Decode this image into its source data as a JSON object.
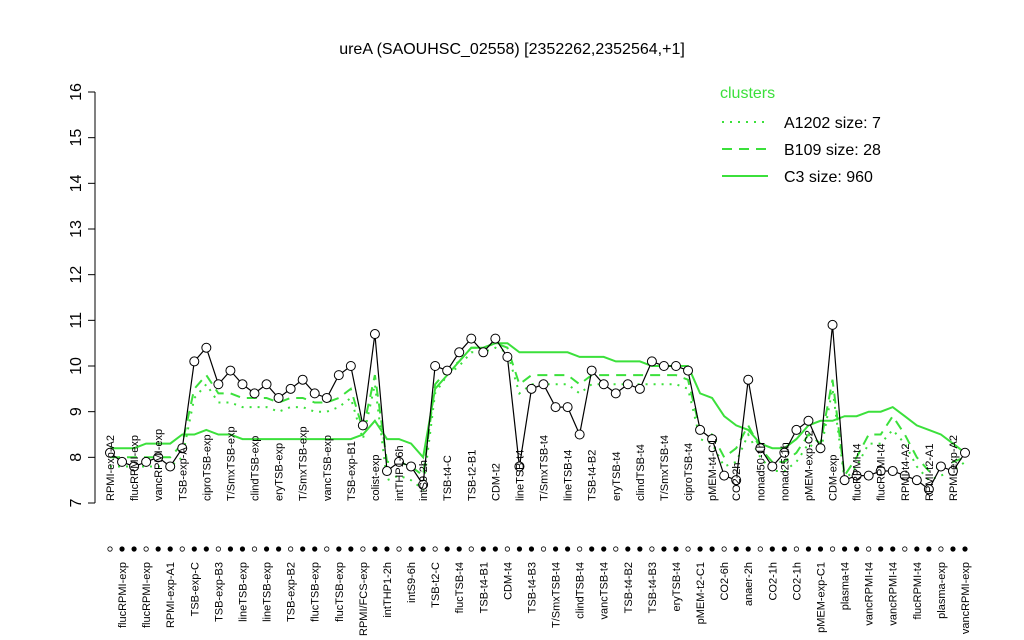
{
  "chart_data": {
    "type": "line",
    "title": "ureA (SAOUHSC_02558) [2352262,2352564,+1]",
    "categories": [
      "RPMI-exp-A2",
      "flucRPMI-exp",
      "flucRPMI-exp",
      "flucRPMI-exp",
      "vancRPMI-exp",
      "RPMI-exp-A1",
      "TSB-exp-A",
      "TSB-exp-C",
      "ciproTSB-exp",
      "TSB-exp-B3",
      "T/SmxTSB-exp",
      "lineTSB-exp",
      "clindTSB-exp",
      "lineTSB-exp",
      "eryTSB-exp",
      "TSB-exp-B2",
      "T/SmxTSB-exp",
      "flucTSB-exp",
      "vancTSB-exp",
      "flucTSB-exp",
      "TSB-exp-B1",
      "RPMI/FCS-exp",
      "colist-exp",
      "intTHP1-2h",
      "intTHP1-6h",
      "intS9-6h",
      "intS9-2h",
      "TSB-t2-C",
      "TSB-t4-C",
      "flucTSB-t4",
      "TSB-t2-B1",
      "TSB-t4-B1",
      "CDM-t2",
      "CDM-t4",
      "lineTSB-t4",
      "TSB-t4-B3",
      "T/SmxTSB-t4",
      "T/SmxTSB-t4",
      "lineTSB-t4",
      "clindTSB-t4",
      "TSB-t4-B2",
      "vancTSB-t4",
      "eryTSB-t4",
      "TSB-t4-B2",
      "clindTSB-t4",
      "TSB-t4-B3",
      "T/SmxTSB-t4",
      "eryTSB-t4",
      "ciproTSB-t4",
      "pMEM-t2-C1",
      "pMEM-t4-C1",
      "CO2-6h",
      "CO2-2h",
      "anaer-2h",
      "nonad50-1h",
      "CO2-1h",
      "nonad25-1h",
      "CO2-1h",
      "pMEM-exp-C2",
      "pMEM-exp-C1",
      "CDM-exp",
      "plasma-t4",
      "flucRPMI-t4",
      "vancRPMI-t4",
      "flucRPMI-t4",
      "vancRPMI-t4",
      "RPMI-t4-A2",
      "flucRPMI-t4",
      "RPMI-t2-A1",
      "plasma-exp",
      "RPMI-exp-A2",
      "vancRPMI-exp"
    ],
    "values": [
      8.1,
      7.9,
      7.8,
      7.9,
      8.0,
      7.8,
      8.2,
      10.1,
      10.4,
      9.6,
      9.9,
      9.6,
      9.4,
      9.6,
      9.3,
      9.5,
      9.7,
      9.4,
      9.3,
      9.8,
      10.0,
      8.7,
      10.7,
      7.7,
      7.9,
      7.8,
      7.4,
      10.0,
      9.9,
      10.3,
      10.6,
      10.3,
      10.6,
      10.2,
      7.8,
      9.5,
      9.6,
      9.1,
      9.1,
      8.5,
      9.9,
      9.6,
      9.4,
      9.6,
      9.5,
      10.1,
      10.0,
      10.0,
      9.9,
      8.6,
      8.4,
      7.6,
      7.5,
      9.7,
      8.2,
      7.8,
      8.1,
      8.6,
      8.8,
      8.2,
      10.9,
      7.5,
      7.6,
      7.6,
      7.7,
      7.7,
      7.6,
      7.5,
      7.3,
      7.8,
      7.7,
      8.1
    ],
    "color": "#000000",
    "series": [
      {
        "name": "A1202 size: 7",
        "color": "#3be03b",
        "dash": "dotted",
        "values": [
          7.8,
          7.8,
          7.8,
          7.8,
          7.8,
          7.8,
          8.0,
          9.3,
          9.6,
          9.2,
          9.2,
          9.1,
          9.1,
          9.1,
          9.0,
          9.1,
          9.1,
          9.0,
          9.0,
          9.1,
          9.3,
          8.4,
          9.6,
          7.5,
          7.6,
          7.5,
          7.3,
          9.4,
          9.8,
          10.0,
          10.3,
          10.3,
          10.4,
          10.3,
          9.4,
          9.6,
          9.6,
          9.6,
          9.6,
          9.4,
          9.6,
          9.6,
          9.6,
          9.6,
          9.6,
          9.6,
          9.6,
          9.6,
          9.5,
          8.4,
          8.3,
          7.8,
          7.9,
          8.5,
          8.0,
          7.7,
          7.7,
          7.9,
          8.3,
          8.1,
          9.5,
          7.5,
          7.8,
          8.3,
          8.3,
          8.6,
          8.3,
          7.8,
          7.5,
          7.6,
          7.7,
          7.9
        ]
      },
      {
        "name": "B109 size: 28",
        "color": "#3be03b",
        "dash": "dashed",
        "values": [
          8.0,
          8.0,
          8.0,
          8.0,
          8.0,
          8.0,
          8.3,
          9.5,
          9.8,
          9.4,
          9.4,
          9.3,
          9.3,
          9.3,
          9.2,
          9.3,
          9.3,
          9.2,
          9.2,
          9.3,
          9.5,
          8.6,
          9.8,
          7.9,
          7.9,
          7.8,
          7.6,
          9.6,
          9.9,
          10.1,
          10.4,
          10.4,
          10.5,
          10.4,
          9.6,
          9.8,
          9.8,
          9.8,
          9.8,
          9.6,
          9.8,
          9.8,
          9.8,
          9.8,
          9.8,
          9.8,
          9.8,
          9.8,
          9.7,
          8.6,
          8.5,
          8.0,
          8.2,
          8.7,
          8.2,
          7.9,
          7.9,
          8.1,
          8.5,
          8.3,
          9.7,
          7.6,
          8.0,
          8.5,
          8.5,
          8.9,
          8.5,
          8.0,
          7.7,
          7.8,
          7.9,
          8.0
        ]
      },
      {
        "name": "C3 size: 960",
        "color": "#3be03b",
        "dash": "solid",
        "values": [
          8.2,
          8.2,
          8.2,
          8.3,
          8.3,
          8.3,
          8.5,
          8.5,
          8.6,
          8.5,
          8.5,
          8.4,
          8.4,
          8.4,
          8.4,
          8.4,
          8.4,
          8.4,
          8.4,
          8.4,
          8.4,
          8.5,
          8.8,
          8.4,
          8.4,
          8.3,
          8.0,
          9.5,
          9.8,
          10.1,
          10.4,
          10.4,
          10.5,
          10.5,
          10.3,
          10.3,
          10.3,
          10.3,
          10.3,
          10.2,
          10.2,
          10.2,
          10.1,
          10.1,
          10.1,
          10.0,
          10.0,
          10.0,
          10.0,
          9.4,
          9.3,
          8.9,
          8.7,
          8.6,
          8.3,
          8.2,
          8.2,
          8.4,
          8.7,
          8.8,
          8.8,
          8.9,
          8.9,
          9.0,
          9.0,
          9.1,
          8.9,
          8.7,
          8.6,
          8.5,
          8.3,
          8.1
        ]
      }
    ],
    "legend_title": "clusters",
    "legend": "top-right",
    "ylim": [
      7,
      16
    ],
    "yticks": [
      7,
      8,
      9,
      10,
      11,
      12,
      13,
      14,
      15,
      16
    ]
  }
}
